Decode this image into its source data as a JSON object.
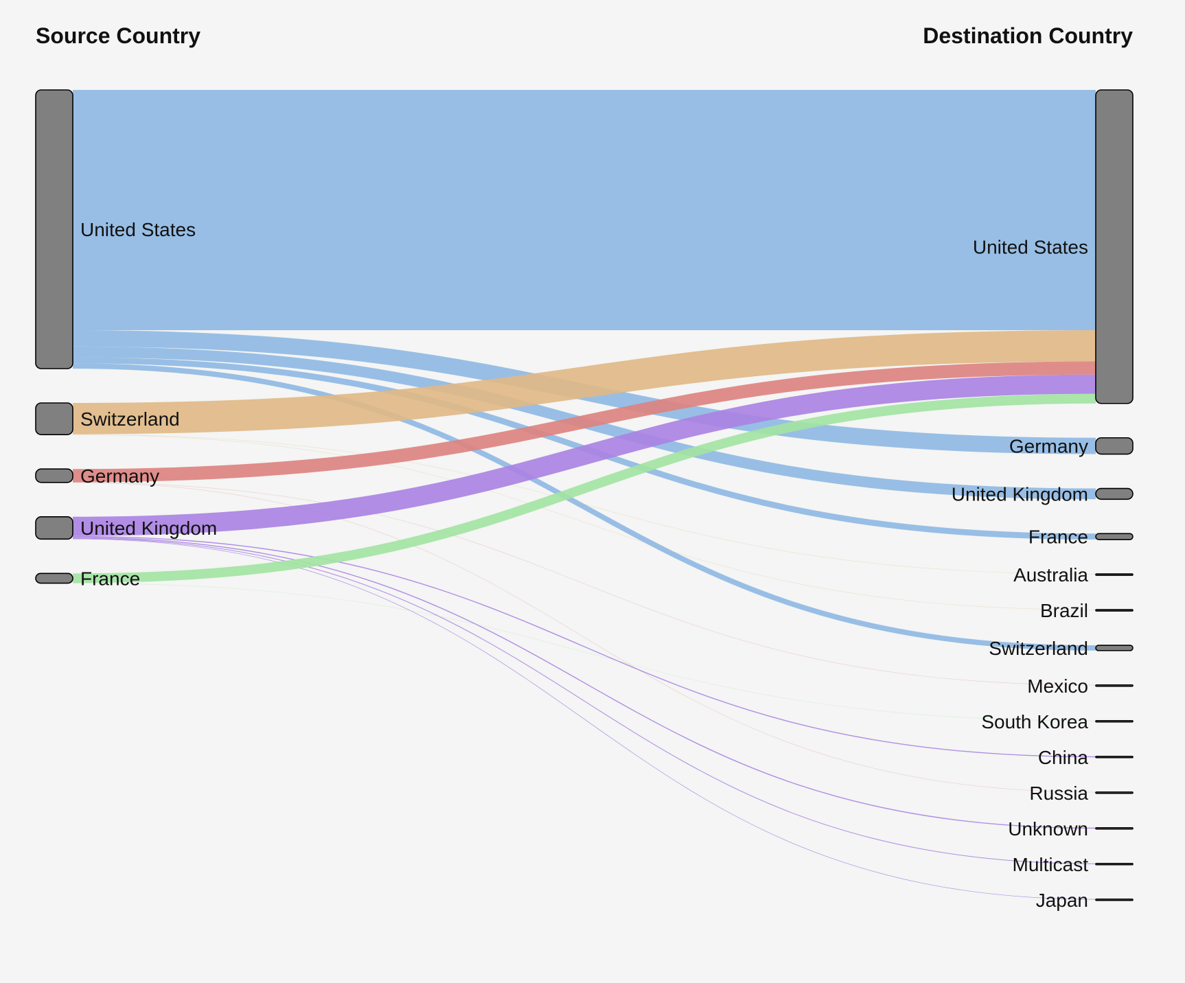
{
  "chart_data": {
    "type": "sankey",
    "columns": {
      "source_title": "Source Country",
      "destination_title": "Destination Country"
    },
    "colors": {
      "node_fill": "#808080",
      "background": "#f4f5f4"
    },
    "sources": [
      {
        "name": "United States",
        "color": "#8fb8e3",
        "flows": [
          {
            "to": "United States",
            "value": 1000
          },
          {
            "to": "Germany",
            "value": 68
          },
          {
            "to": "United Kingdom",
            "value": 45
          },
          {
            "to": "France",
            "value": 25
          },
          {
            "to": "Switzerland",
            "value": 22
          }
        ]
      },
      {
        "name": "Switzerland",
        "color": "#e0b887",
        "flows": [
          {
            "to": "United States",
            "value": 130
          },
          {
            "to": "Australia",
            "value": 1
          },
          {
            "to": "Brazil",
            "value": 1
          }
        ]
      },
      {
        "name": "Germany",
        "color": "#dc8380",
        "flows": [
          {
            "to": "United States",
            "value": 55
          },
          {
            "to": "Mexico",
            "value": 0.5
          },
          {
            "to": "Russia",
            "value": 0.5
          }
        ]
      },
      {
        "name": "United Kingdom",
        "color": "#aa83e3",
        "flows": [
          {
            "to": "United States",
            "value": 80
          },
          {
            "to": "China",
            "value": 4
          },
          {
            "to": "Unknown",
            "value": 4
          },
          {
            "to": "Multicast",
            "value": 3
          },
          {
            "to": "Japan",
            "value": 2
          }
        ]
      },
      {
        "name": "France",
        "color": "#a3e3a3",
        "flows": [
          {
            "to": "United States",
            "value": 40
          },
          {
            "to": "South Korea",
            "value": 0.5
          }
        ]
      }
    ],
    "destinations": [
      "United States",
      "Germany",
      "United Kingdom",
      "France",
      "Australia",
      "Brazil",
      "Switzerland",
      "Mexico",
      "South Korea",
      "China",
      "Russia",
      "Unknown",
      "Multicast",
      "Japan"
    ]
  }
}
